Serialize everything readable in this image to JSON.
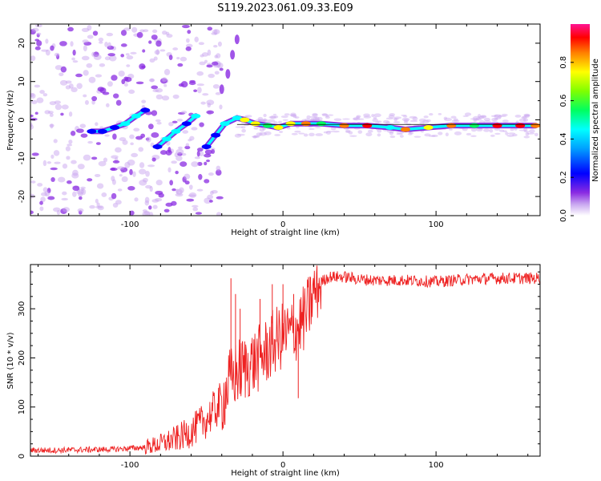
{
  "title": "S119.2023.061.09.33.E09",
  "chart_data": [
    {
      "type": "heatmap",
      "xlabel": "Height of straight line (km)",
      "ylabel": "Frequency (Hz)",
      "xlim": [
        -165,
        168
      ],
      "ylim": [
        -25,
        25
      ],
      "x_ticks": [
        -100,
        0,
        100
      ],
      "y_ticks": [
        -20,
        -10,
        0,
        10,
        20
      ],
      "x_tick_labels": [
        "-100",
        "0",
        "100"
      ],
      "y_tick_labels": [
        "-20",
        "-10",
        "0",
        "10",
        "20"
      ],
      "colorbar": {
        "label": "Normalized spectral amplitude",
        "range": [
          0,
          1
        ],
        "ticks": [
          "0.0",
          "0.2",
          "0.4",
          "0.6",
          "0.8"
        ],
        "tick_values": [
          0,
          0.2,
          0.4,
          0.6,
          0.8
        ],
        "colors": [
          "#ffffff",
          "#8a2be2",
          "#0000ff",
          "#00ffff",
          "#00ff00",
          "#ffff00",
          "#ff8000",
          "#ff0000",
          "#ff1493"
        ]
      },
      "ridge": [
        {
          "x": -125,
          "y": -3,
          "a": 0.35
        },
        {
          "x": -118,
          "y": -3,
          "a": 0.4
        },
        {
          "x": -110,
          "y": -2,
          "a": 0.45
        },
        {
          "x": -103,
          "y": -1,
          "a": 0.55
        },
        {
          "x": -96,
          "y": 1,
          "a": 0.55
        },
        {
          "x": -90,
          "y": 2.5,
          "a": 0.45
        },
        {
          "x": -82,
          "y": -7,
          "a": 0.4
        },
        {
          "x": -76,
          "y": -5,
          "a": 0.5
        },
        {
          "x": -70,
          "y": -3,
          "a": 0.5
        },
        {
          "x": -63,
          "y": -1,
          "a": 0.45
        },
        {
          "x": -57,
          "y": 1,
          "a": 0.5
        },
        {
          "x": -50,
          "y": -7,
          "a": 0.35
        },
        {
          "x": -44,
          "y": -4,
          "a": 0.45
        },
        {
          "x": -38,
          "y": -1,
          "a": 0.5
        },
        {
          "x": -30,
          "y": 0.5,
          "a": 0.6
        },
        {
          "x": -25,
          "y": 0,
          "a": 0.75
        },
        {
          "x": -18,
          "y": -1,
          "a": 0.8
        },
        {
          "x": -10,
          "y": -1.5,
          "a": 0.7
        },
        {
          "x": -3,
          "y": -2,
          "a": 0.75
        },
        {
          "x": 5,
          "y": -1,
          "a": 0.8
        },
        {
          "x": 15,
          "y": -1,
          "a": 0.9
        },
        {
          "x": 25,
          "y": -1,
          "a": 0.7
        },
        {
          "x": 40,
          "y": -1.5,
          "a": 0.9
        },
        {
          "x": 55,
          "y": -1.5,
          "a": 0.95
        },
        {
          "x": 70,
          "y": -2,
          "a": 0.6
        },
        {
          "x": 80,
          "y": -2.5,
          "a": 0.9
        },
        {
          "x": 95,
          "y": -2,
          "a": 0.8
        },
        {
          "x": 110,
          "y": -1.5,
          "a": 0.9
        },
        {
          "x": 125,
          "y": -1.5,
          "a": 0.7
        },
        {
          "x": 140,
          "y": -1.5,
          "a": 0.95
        },
        {
          "x": 155,
          "y": -1.5,
          "a": 0.95
        },
        {
          "x": 165,
          "y": -1.5,
          "a": 0.9
        }
      ],
      "upper_branch": [
        {
          "x": -40,
          "y": 8
        },
        {
          "x": -36,
          "y": 12
        },
        {
          "x": -33,
          "y": 17
        },
        {
          "x": -30,
          "y": 21
        }
      ]
    },
    {
      "type": "line",
      "xlabel": "Height of straight line (km)",
      "ylabel": "SNR (10 * v/v)",
      "xlim": [
        -165,
        168
      ],
      "ylim": [
        0,
        390
      ],
      "x_ticks": [
        -100,
        0,
        100
      ],
      "y_ticks": [
        0,
        100,
        200,
        300
      ],
      "x_tick_labels": [
        "-100",
        "0",
        "100"
      ],
      "y_tick_labels": [
        "0",
        "100",
        "200",
        "300"
      ],
      "series": [
        {
          "color": "#ee2222",
          "x": [
            -165,
            -150,
            -130,
            -110,
            -90,
            -80,
            -70,
            -60,
            -50,
            -40,
            -35,
            -30,
            -25,
            -20,
            -15,
            -10,
            -5,
            0,
            5,
            10,
            15,
            20,
            25,
            30,
            40,
            50,
            60,
            80,
            100,
            120,
            140,
            168
          ],
          "y": [
            12,
            12,
            13,
            14,
            18,
            25,
            35,
            50,
            75,
            110,
            150,
            170,
            180,
            190,
            200,
            215,
            235,
            245,
            250,
            265,
            285,
            330,
            355,
            365,
            365,
            360,
            358,
            358,
            355,
            360,
            362,
            362
          ],
          "spikes": [
            {
              "x": -34,
              "y": 362
            },
            {
              "x": -31,
              "y": 330
            },
            {
              "x": -28,
              "y": 300
            },
            {
              "x": -15,
              "y": 320
            },
            {
              "x": -7,
              "y": 350
            },
            {
              "x": 0,
              "y": 350
            },
            {
              "x": 7,
              "y": 330
            },
            {
              "x": 10,
              "y": 118
            },
            {
              "x": 13,
              "y": 300
            }
          ]
        }
      ]
    }
  ]
}
